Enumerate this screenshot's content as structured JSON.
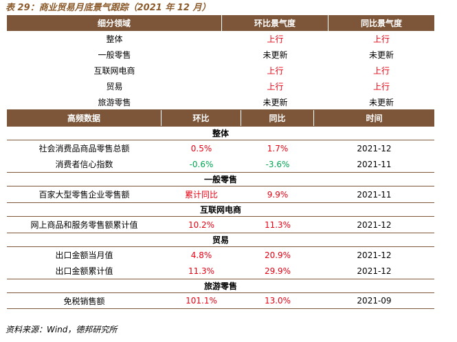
{
  "title": "表 29：商业贸易月底景气跟踪（2021 年 12 月）",
  "table1": {
    "headers": [
      "细分领域",
      "环比景气度",
      "同比景气度"
    ],
    "rows": [
      {
        "name": "整体",
        "mom": "上行",
        "yoy": "上行",
        "mom_color": "red",
        "yoy_color": "red"
      },
      {
        "name": "一般零售",
        "mom": "未更新",
        "yoy": "未更新",
        "mom_color": "black",
        "yoy_color": "black"
      },
      {
        "name": "互联网电商",
        "mom": "上行",
        "yoy": "上行",
        "mom_color": "red",
        "yoy_color": "red"
      },
      {
        "name": "贸易",
        "mom": "上行",
        "yoy": "上行",
        "mom_color": "red",
        "yoy_color": "red"
      },
      {
        "name": "旅游零售",
        "mom": "未更新",
        "yoy": "未更新",
        "mom_color": "black",
        "yoy_color": "black"
      }
    ]
  },
  "table2": {
    "headers": [
      "高频数据",
      "环比",
      "同比",
      "时间"
    ],
    "sections": [
      {
        "title": "整体",
        "rows": [
          {
            "name": "社会消费品商品零售总额",
            "mom": "0.5%",
            "yoy": "1.7%",
            "time": "2021-12",
            "mom_color": "red",
            "yoy_color": "red"
          },
          {
            "name": "消费者信心指数",
            "mom": "-0.6%",
            "yoy": "-3.6%",
            "time": "2021-11",
            "mom_color": "green",
            "yoy_color": "green"
          }
        ]
      },
      {
        "title": "一般零售",
        "rows": [
          {
            "name": "百家大型零售企业零售额",
            "mom": "累计同比",
            "yoy": "9.9%",
            "time": "2021-11",
            "mom_color": "red",
            "yoy_color": "red"
          }
        ]
      },
      {
        "title": "互联网电商",
        "rows": [
          {
            "name": "网上商品和服务零售额累计值",
            "mom": "10.2%",
            "yoy": "11.3%",
            "time": "2021-12",
            "mom_color": "red",
            "yoy_color": "red"
          }
        ]
      },
      {
        "title": "贸易",
        "rows": [
          {
            "name": "出口金额当月值",
            "mom": "4.8%",
            "yoy": "20.9%",
            "time": "2021-12",
            "mom_color": "red",
            "yoy_color": "red"
          },
          {
            "name": "出口金额累计值",
            "mom": "11.3%",
            "yoy": "29.9%",
            "time": "2021-12",
            "mom_color": "red",
            "yoy_color": "red"
          }
        ]
      },
      {
        "title": "旅游零售",
        "rows": [
          {
            "name": "免税销售额",
            "mom": "101.1%",
            "yoy": "13.0%",
            "time": "2021-09",
            "mom_color": "red",
            "yoy_color": "red"
          }
        ]
      }
    ]
  },
  "source": "资料来源：Wind，德邦研究所",
  "colors": {
    "header_bg": "#7d563a",
    "title": "#8b5a2b",
    "red": "#e60012",
    "green": "#00a651"
  }
}
